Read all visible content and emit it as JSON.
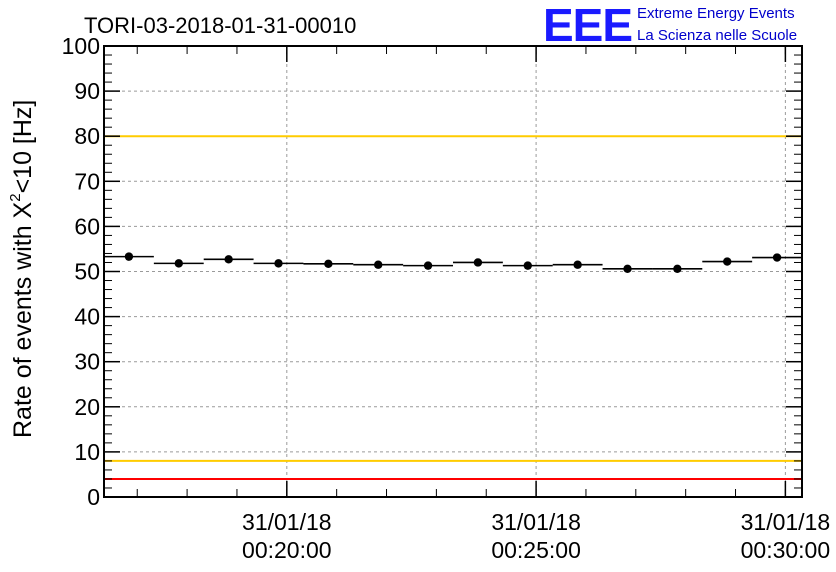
{
  "chart_data": {
    "type": "scatter",
    "title": "TORI-03-2018-01-31-00010",
    "ylabel": {
      "main": "Rate of events with X",
      "superscript": "2",
      "suffix": "<10 [Hz]"
    },
    "xlabel": "",
    "ylim": [
      0,
      100
    ],
    "yticks": [
      "0",
      "10",
      "20",
      "30",
      "40",
      "50",
      "60",
      "70",
      "80",
      "90",
      "100"
    ],
    "x_unit": "minutes after 00:16:20",
    "xlim": [
      0,
      14
    ],
    "xticks": [
      {
        "value": 3.6667,
        "date": "31/01/18",
        "time": "00:20:00"
      },
      {
        "value": 8.6667,
        "date": "31/01/18",
        "time": "00:25:00"
      },
      {
        "value": 13.6667,
        "date": "31/01/18",
        "time": "00:30:00"
      }
    ],
    "grid": true,
    "thresholds": [
      {
        "name": "upper-red",
        "value": 100,
        "color": "#ff0000"
      },
      {
        "name": "upper-yellow",
        "value": 80,
        "color": "#ffcc00"
      },
      {
        "name": "lower-yellow",
        "value": 8,
        "color": "#ffcc00"
      },
      {
        "name": "lower-red",
        "value": 4,
        "color": "#ff0000"
      }
    ],
    "series": [
      {
        "name": "rate",
        "marker": "circle",
        "color": "#000000",
        "bin_width": 1,
        "x": [
          0.5,
          1.5,
          2.5,
          3.5,
          4.5,
          5.5,
          6.5,
          7.5,
          8.5,
          9.5,
          10.5,
          11.5,
          12.5,
          13.5
        ],
        "values": [
          53.3,
          51.8,
          52.7,
          51.8,
          51.7,
          51.5,
          51.3,
          52.0,
          51.3,
          51.5,
          50.6,
          50.6,
          52.2,
          53.1
        ]
      }
    ]
  },
  "logo": {
    "mark": "EEE",
    "line1": "Extreme Energy Events",
    "line2": "La Scienza nelle Scuole",
    "color": "#1a1aff"
  }
}
